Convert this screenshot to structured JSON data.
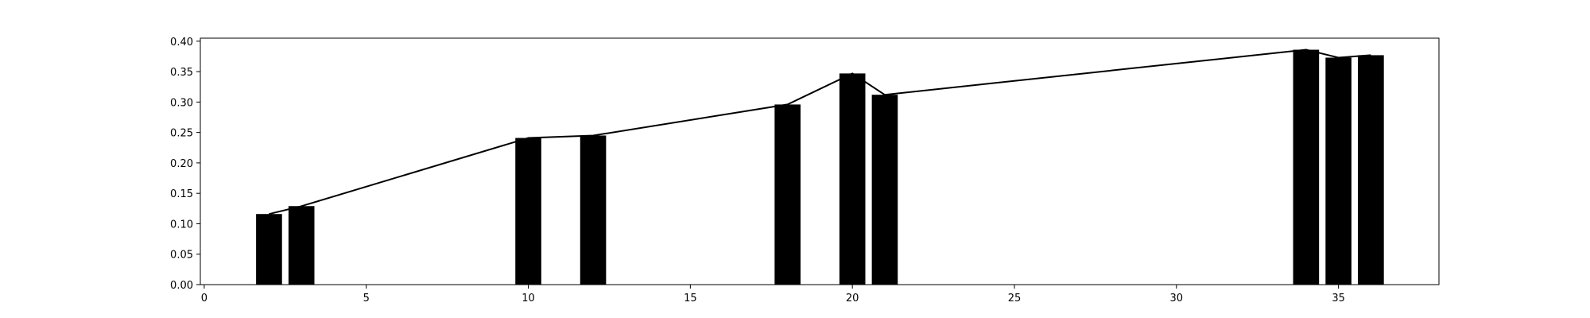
{
  "chart_data": {
    "type": "bar",
    "x": [
      2,
      3,
      10,
      12,
      18,
      20,
      21,
      34,
      35,
      36
    ],
    "values": [
      0.116,
      0.129,
      0.241,
      0.245,
      0.296,
      0.347,
      0.312,
      0.386,
      0.373,
      0.377
    ],
    "line": {
      "x": [
        2,
        3,
        10,
        12,
        18,
        20,
        21,
        34,
        35,
        36
      ],
      "values": [
        0.116,
        0.129,
        0.241,
        0.245,
        0.296,
        0.347,
        0.312,
        0.386,
        0.373,
        0.377
      ]
    },
    "title": "",
    "xlabel": "",
    "ylabel": "",
    "xlim": [
      -0.12,
      38.1
    ],
    "ylim": [
      0,
      0.405
    ],
    "bar_width": 0.8,
    "xticks": [
      0,
      5,
      10,
      15,
      20,
      25,
      30,
      35
    ],
    "xtick_labels": [
      "0",
      "5",
      "10",
      "15",
      "20",
      "25",
      "30",
      "35"
    ],
    "yticks": [
      0,
      0.05,
      0.1,
      0.15,
      0.2,
      0.25,
      0.3,
      0.35,
      0.4
    ],
    "ytick_labels": [
      "0.00",
      "0.05",
      "0.10",
      "0.15",
      "0.20",
      "0.25",
      "0.30",
      "0.35",
      "0.40"
    ],
    "grid": false,
    "bar_color": "#000000",
    "line_color": "#000000"
  }
}
